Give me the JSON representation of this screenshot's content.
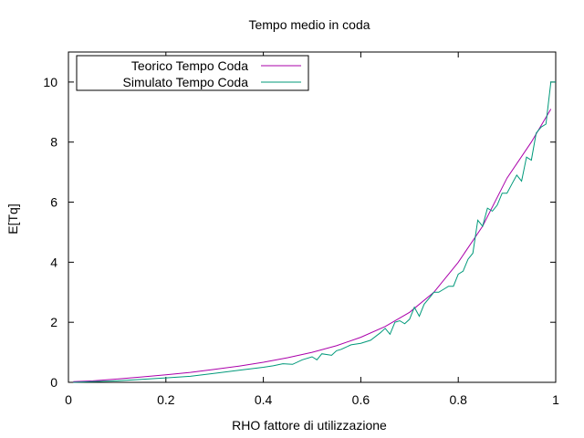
{
  "chart_data": {
    "type": "line",
    "title": "Tempo medio in coda",
    "xlabel": "RHO fattore di utilizzazione",
    "ylabel": "E[Tq]",
    "xlim": [
      0,
      1
    ],
    "ylim": [
      0,
      11
    ],
    "x_ticks": [
      "0",
      "0.2",
      "0.4",
      "0.6",
      "0.8",
      "1"
    ],
    "y_ticks": [
      "0",
      "2",
      "4",
      "6",
      "8",
      "10"
    ],
    "grid": false,
    "legend_position": "top-left",
    "series": [
      {
        "name": "Teorico Tempo Coda",
        "color": "#aa00aa",
        "x": [
          0.01,
          0.05,
          0.1,
          0.15,
          0.2,
          0.25,
          0.3,
          0.35,
          0.4,
          0.45,
          0.5,
          0.55,
          0.6,
          0.65,
          0.7,
          0.75,
          0.8,
          0.85,
          0.9,
          0.95,
          0.99
        ],
        "y": [
          0.02,
          0.05,
          0.11,
          0.18,
          0.25,
          0.33,
          0.43,
          0.54,
          0.67,
          0.82,
          1.0,
          1.22,
          1.5,
          1.86,
          2.33,
          3.0,
          4.0,
          5.2,
          6.8,
          8.0,
          9.1
        ]
      },
      {
        "name": "Simulato Tempo Coda",
        "color": "#00997a",
        "x": [
          0.01,
          0.05,
          0.1,
          0.15,
          0.2,
          0.25,
          0.3,
          0.35,
          0.4,
          0.42,
          0.44,
          0.46,
          0.48,
          0.5,
          0.51,
          0.52,
          0.54,
          0.55,
          0.56,
          0.58,
          0.6,
          0.62,
          0.64,
          0.65,
          0.66,
          0.67,
          0.68,
          0.69,
          0.7,
          0.71,
          0.72,
          0.73,
          0.74,
          0.75,
          0.76,
          0.77,
          0.78,
          0.79,
          0.8,
          0.81,
          0.82,
          0.83,
          0.84,
          0.85,
          0.86,
          0.87,
          0.88,
          0.89,
          0.9,
          0.91,
          0.92,
          0.93,
          0.94,
          0.95,
          0.96,
          0.97,
          0.98,
          0.99,
          1.0
        ],
        "y": [
          0.0,
          0.02,
          0.05,
          0.1,
          0.15,
          0.2,
          0.3,
          0.4,
          0.5,
          0.55,
          0.62,
          0.6,
          0.75,
          0.85,
          0.75,
          0.95,
          0.9,
          1.05,
          1.1,
          1.25,
          1.3,
          1.4,
          1.65,
          1.8,
          1.6,
          2.0,
          2.05,
          1.95,
          2.1,
          2.5,
          2.2,
          2.6,
          2.8,
          3.0,
          3.0,
          3.1,
          3.2,
          3.2,
          3.6,
          3.7,
          4.1,
          4.3,
          5.4,
          5.2,
          5.8,
          5.7,
          5.9,
          6.3,
          6.3,
          6.6,
          6.9,
          6.7,
          7.5,
          7.4,
          8.3,
          8.5,
          8.6,
          10.0,
          10.0
        ]
      }
    ]
  }
}
